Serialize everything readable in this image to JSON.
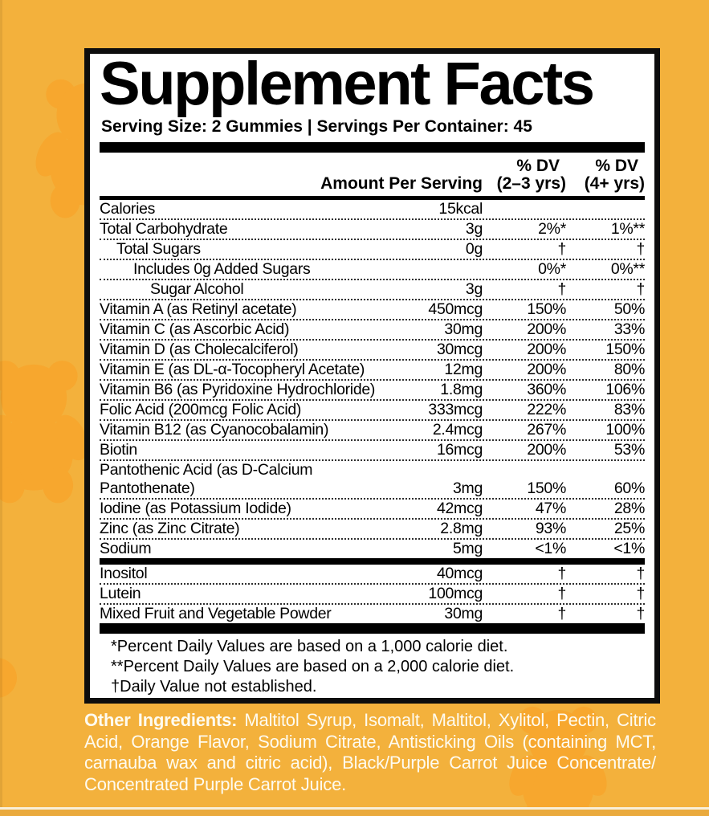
{
  "colors": {
    "background": "#F3B13C",
    "bear": "#F7A72E",
    "panel_background": "#FFFFFF",
    "panel_border": "#0D0D0D",
    "ingredients_text": "#FEFBF0"
  },
  "panel": {
    "title": "Supplement Facts",
    "serving_line": "Serving Size: 2 Gummies | Servings Per Container: 45",
    "header": {
      "amount_label": "Amount Per Serving",
      "col1_top": "% DV",
      "col1_bottom": "(2–3 yrs)",
      "col2_top": "% DV",
      "col2_bottom": "(4+ yrs)"
    },
    "rows": [
      {
        "name": "Calories",
        "indent": 0,
        "amount": "15kcal",
        "dv1": "",
        "dv2": ""
      },
      {
        "name": "Total Carbohydrate",
        "indent": 0,
        "amount": "3g",
        "dv1": "2%*",
        "dv2": "1%**"
      },
      {
        "name": "Total Sugars",
        "indent": 1,
        "amount": "0g",
        "dv1": "†",
        "dv2": "†"
      },
      {
        "name": "Includes 0g Added Sugars",
        "indent": 2,
        "amount": "",
        "dv1": "0%*",
        "dv2": "0%**"
      },
      {
        "name": "Sugar Alcohol",
        "indent": 3,
        "amount": "3g",
        "dv1": "†",
        "dv2": "†"
      },
      {
        "name": "Vitamin A (as Retinyl acetate)",
        "indent": 0,
        "amount": "450mcg",
        "dv1": "150%",
        "dv2": "50%"
      },
      {
        "name": "Vitamin C (as Ascorbic Acid)",
        "indent": 0,
        "amount": "30mg",
        "dv1": "200%",
        "dv2": "33%"
      },
      {
        "name": "Vitamin D (as Cholecalciferol)",
        "indent": 0,
        "amount": "30mcg",
        "dv1": "200%",
        "dv2": "150%"
      },
      {
        "name": "Vitamin E (as DL-α-Tocopheryl Acetate)",
        "indent": 0,
        "amount": "12mg",
        "dv1": "200%",
        "dv2": "80%"
      },
      {
        "name": "Vitamin B6 (as Pyridoxine Hydrochloride)",
        "indent": 0,
        "amount": "1.8mg",
        "dv1": "360%",
        "dv2": "106%"
      },
      {
        "name": "Folic Acid (200mcg Folic Acid)",
        "indent": 0,
        "amount": "333mcg",
        "dv1": "222%",
        "dv2": "83%"
      },
      {
        "name": "Vitamin B12 (as Cyanocobalamin)",
        "indent": 0,
        "amount": "2.4mcg",
        "dv1": "267%",
        "dv2": "100%"
      },
      {
        "name": "Biotin",
        "indent": 0,
        "amount": "16mcg",
        "dv1": "200%",
        "dv2": "53%"
      },
      {
        "name": "Pantothenic Acid (as D-Calcium\nPantothenate)",
        "indent": 0,
        "amount": "3mg",
        "dv1": "150%",
        "dv2": "60%"
      },
      {
        "name": "Iodine (as Potassium Iodide)",
        "indent": 0,
        "amount": "42mcg",
        "dv1": "47%",
        "dv2": "28%"
      },
      {
        "name": "Zinc (as Zinc Citrate)",
        "indent": 0,
        "amount": "2.8mg",
        "dv1": "93%",
        "dv2": "25%"
      },
      {
        "name": "Sodium",
        "indent": 0,
        "amount": "5mg",
        "dv1": "<1%",
        "dv2": "<1%",
        "separator_after": "thick"
      },
      {
        "name": "Inositol",
        "indent": 0,
        "amount": "40mcg",
        "dv1": "†",
        "dv2": "†"
      },
      {
        "name": "Lutein",
        "indent": 0,
        "amount": "100mcg",
        "dv1": "†",
        "dv2": "†"
      },
      {
        "name": "Mixed Fruit and Vegetable Powder",
        "indent": 0,
        "amount": "30mg",
        "dv1": "†",
        "dv2": "†",
        "separator_after": "none"
      }
    ],
    "footnotes": [
      "*Percent Daily Values are based on a 1,000 calorie diet.",
      "**Percent Daily Values are based on a 2,000 calorie diet.",
      "†Daily Value not established."
    ]
  },
  "ingredients": {
    "label": "Other Ingredients:",
    "text": " Maltitol Syrup, Isomalt, Maltitol, Xylitol, Pectin, Citric Acid, Orange Flavor, Sodium Citrate, Antisticking Oils (containing MCT, carnauba wax and citric acid), Black/Purple Carrot Juice Concentrate/ Concentrated Purple Carrot Juice."
  }
}
